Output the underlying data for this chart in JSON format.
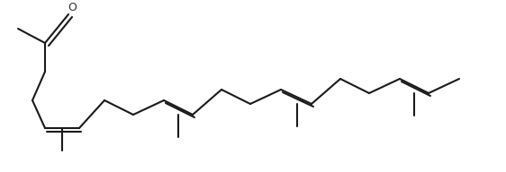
{
  "background": "#ffffff",
  "line_color": "#1a1a1a",
  "lw": 1.5,
  "fw": 5.62,
  "fh": 1.92,
  "dpi": 100,
  "O_label": "O",
  "O_fontsize": 9,
  "segments": [
    [
      20,
      32,
      50,
      48,
      false
    ],
    [
      50,
      48,
      76,
      16,
      false
    ],
    [
      54,
      51,
      80,
      19,
      false
    ],
    [
      50,
      48,
      50,
      80,
      false
    ],
    [
      50,
      80,
      36,
      112,
      false
    ],
    [
      36,
      112,
      50,
      143,
      false
    ],
    [
      50,
      143,
      88,
      143,
      false
    ],
    [
      52,
      147,
      90,
      147,
      false
    ],
    [
      69,
      143,
      69,
      168,
      false
    ],
    [
      88,
      143,
      116,
      112,
      false
    ],
    [
      116,
      112,
      148,
      128,
      false
    ],
    [
      148,
      128,
      182,
      112,
      false
    ],
    [
      182,
      112,
      214,
      128,
      false
    ],
    [
      184,
      115,
      216,
      131,
      false
    ],
    [
      198,
      128,
      198,
      153,
      false
    ],
    [
      214,
      128,
      246,
      100,
      false
    ],
    [
      246,
      100,
      278,
      116,
      false
    ],
    [
      278,
      116,
      312,
      100,
      false
    ],
    [
      312,
      100,
      346,
      116,
      false
    ],
    [
      314,
      103,
      348,
      119,
      false
    ],
    [
      330,
      116,
      330,
      141,
      false
    ],
    [
      346,
      116,
      378,
      88,
      false
    ],
    [
      378,
      88,
      410,
      104,
      false
    ],
    [
      410,
      104,
      444,
      88,
      false
    ],
    [
      444,
      88,
      476,
      104,
      false
    ],
    [
      446,
      91,
      478,
      107,
      false
    ],
    [
      460,
      104,
      460,
      129,
      false
    ],
    [
      476,
      104,
      510,
      88,
      false
    ]
  ]
}
